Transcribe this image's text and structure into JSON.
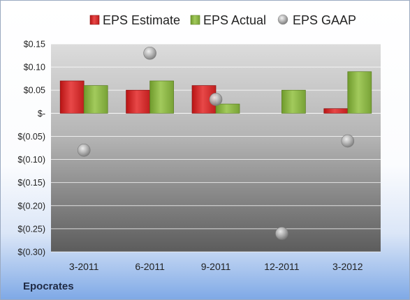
{
  "company": "Epocrates",
  "chart_data": {
    "type": "bar",
    "categories": [
      "3-2011",
      "6-2011",
      "9-2011",
      "12-2011",
      "3-2012"
    ],
    "series": [
      {
        "name": "EPS Estimate",
        "type": "bar",
        "color": "#d32a2a",
        "values": [
          0.07,
          0.05,
          0.06,
          null,
          0.01
        ]
      },
      {
        "name": "EPS Actual",
        "type": "bar",
        "color": "#8bb447",
        "values": [
          0.06,
          0.07,
          0.02,
          0.05,
          0.09
        ]
      },
      {
        "name": "EPS GAAP",
        "type": "scatter",
        "color": "#a6a6a6",
        "values": [
          -0.08,
          0.13,
          0.03,
          -0.26,
          -0.06
        ]
      }
    ],
    "ylim": [
      -0.3,
      0.15
    ],
    "yticks": [
      0.15,
      0.1,
      0.05,
      0,
      -0.05,
      -0.1,
      -0.15,
      -0.2,
      -0.25,
      -0.3
    ],
    "ytick_labels": [
      "$0.15",
      "$0.10",
      "$0.05",
      "$-",
      "$(0.05)",
      "$(0.10)",
      "$(0.15)",
      "$(0.20)",
      "$(0.25)",
      "$(0.30)"
    ],
    "grid": true,
    "legend": "top"
  }
}
